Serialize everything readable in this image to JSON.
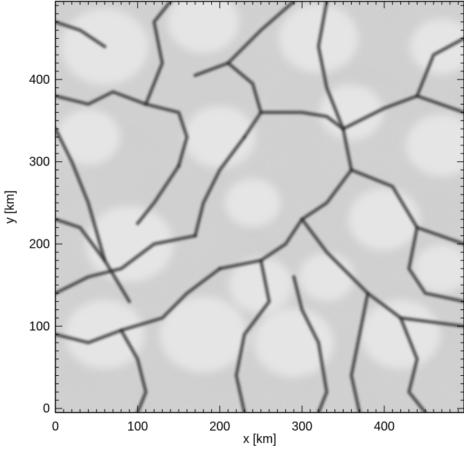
{
  "chart_data": {
    "type": "heatmap",
    "title": "",
    "xlabel": "x [km]",
    "ylabel": "y [km]",
    "xlim": [
      0,
      497
    ],
    "ylim": [
      -5,
      495
    ],
    "x_ticks": [
      0,
      100,
      200,
      300,
      400
    ],
    "y_ticks": [
      0,
      100,
      200,
      300,
      400
    ],
    "x_minor_step": 10,
    "y_minor_step": 10,
    "colormap": "grayscale",
    "grid": false,
    "legend": "none",
    "colors": {
      "background": "#d2d2d2",
      "lane": "#2e2e2e",
      "light": "#e9e9e9",
      "frame": "#000000"
    },
    "description_hidden": "intensity map: bright granules separated by dark intergranular lanes"
  }
}
